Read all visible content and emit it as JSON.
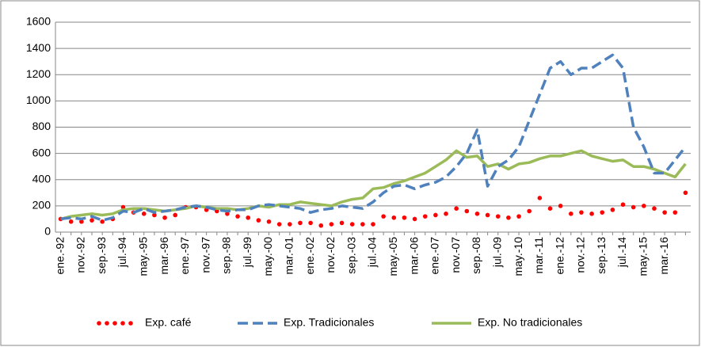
{
  "chart_data": {
    "type": "line",
    "categories": [
      "ene.-92",
      null,
      "nov.-92",
      null,
      "sep.-93",
      null,
      "jul.-94",
      null,
      "may.-95",
      null,
      "mar.-96",
      null,
      "ene.-97",
      null,
      "nov.-97",
      null,
      "sep.-98",
      null,
      "jul.-99",
      null,
      "may.-00",
      null,
      "mar.-01",
      null,
      "ene.-02",
      null,
      "nov.-02",
      null,
      "sep.-03",
      null,
      "jul.-04",
      null,
      "may.-05",
      null,
      "mar.-06",
      null,
      "ene.-07",
      null,
      "nov.-07",
      null,
      "sep.-08",
      null,
      "jul.-09",
      null,
      "may.-10",
      null,
      "mar.-11",
      null,
      "ene.-12",
      null,
      "nov.-12",
      null,
      "sep.-13",
      null,
      "jul.-14",
      null,
      "may.-15",
      null,
      "mar.-16",
      null,
      null
    ],
    "series": [
      {
        "name": "Exp. café",
        "color": "#ff0000",
        "style": "dotted",
        "values": [
          100,
          80,
          80,
          90,
          80,
          100,
          190,
          150,
          140,
          130,
          110,
          130,
          190,
          190,
          170,
          160,
          140,
          120,
          110,
          90,
          80,
          60,
          60,
          70,
          70,
          50,
          60,
          70,
          60,
          60,
          60,
          120,
          110,
          110,
          100,
          120,
          130,
          140,
          180,
          160,
          140,
          130,
          120,
          110,
          120,
          160,
          260,
          180,
          200,
          140,
          150,
          140,
          150,
          170,
          210,
          190,
          200,
          180,
          150,
          150,
          300
        ]
      },
      {
        "name": "Exp. Tradicionales",
        "color": "#4f81bd",
        "style": "dashed",
        "values": [
          100,
          110,
          100,
          120,
          90,
          110,
          160,
          150,
          180,
          150,
          160,
          170,
          190,
          200,
          190,
          170,
          160,
          170,
          170,
          200,
          210,
          200,
          190,
          180,
          150,
          170,
          180,
          200,
          190,
          180,
          230,
          300,
          350,
          360,
          330,
          360,
          380,
          420,
          500,
          600,
          780,
          350,
          500,
          550,
          650,
          850,
          1050,
          1250,
          1300,
          1200,
          1250,
          1250,
          1300,
          1350,
          1250,
          800,
          650,
          450,
          450,
          550,
          650
        ]
      },
      {
        "name": "Exp. No tradicionales",
        "color": "#9bbb59",
        "style": "solid",
        "values": [
          100,
          120,
          130,
          140,
          130,
          140,
          170,
          180,
          180,
          170,
          160,
          170,
          180,
          200,
          190,
          180,
          180,
          170,
          180,
          200,
          190,
          210,
          210,
          230,
          220,
          210,
          200,
          230,
          250,
          260,
          330,
          340,
          370,
          390,
          420,
          450,
          500,
          550,
          620,
          570,
          580,
          500,
          520,
          480,
          520,
          530,
          560,
          580,
          580,
          600,
          620,
          580,
          560,
          540,
          550,
          500,
          500,
          480,
          450,
          420,
          520
        ]
      }
    ],
    "ylim": [
      0,
      1600
    ],
    "yticks": [
      0,
      200,
      400,
      600,
      800,
      1000,
      1200,
      1400,
      1600
    ],
    "grid": true,
    "legend": "bottom"
  }
}
